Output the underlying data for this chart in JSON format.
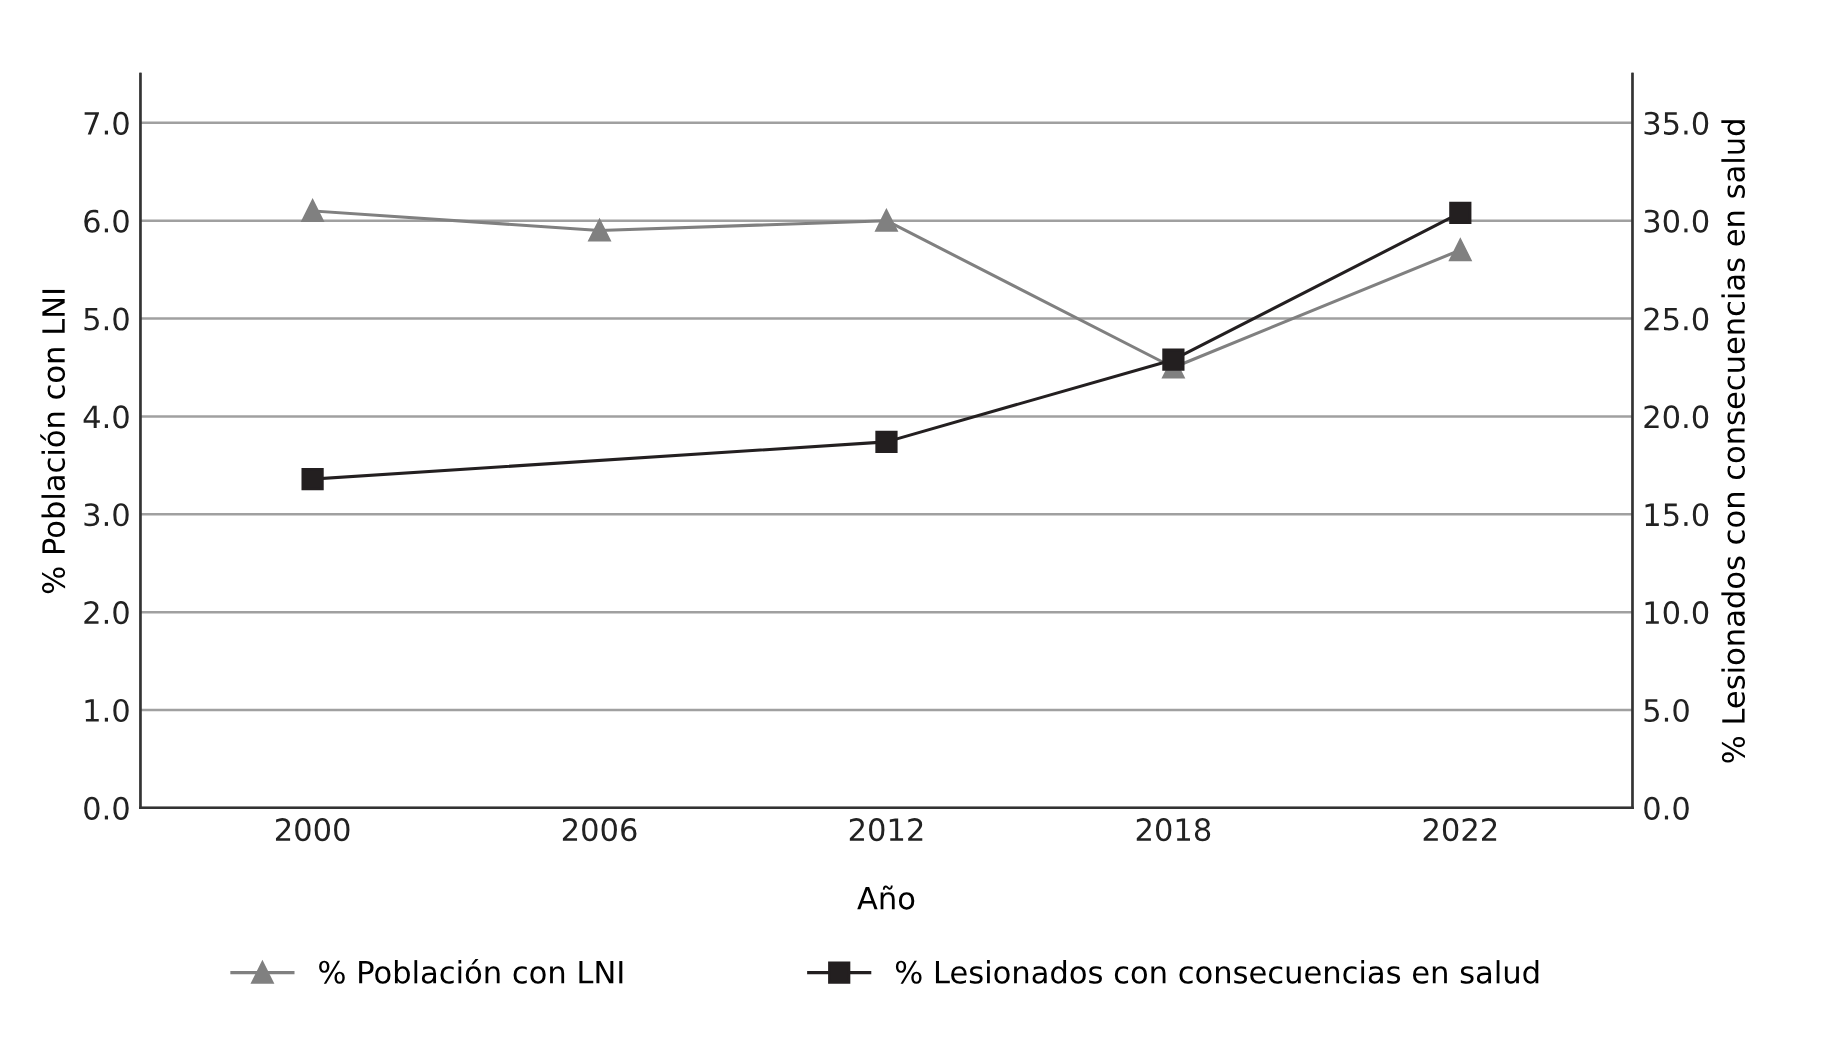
{
  "chart_data": {
    "type": "line",
    "xlabel": "Año",
    "ylabel": "% Población con LNI",
    "y2label": "% Lesionados con consecuencias en salud",
    "categories": [
      "2000",
      "2006",
      "2012",
      "2018",
      "2022"
    ],
    "series": [
      {
        "name": "% Población con LNI",
        "color": "#808080",
        "marker": "triangle",
        "values": [
          6.1,
          5.9,
          6.0,
          4.5,
          5.7
        ]
      },
      {
        "name": "% Lesionados con consecuencias en salud",
        "color": "#231f20",
        "marker": "square",
        "axis": "y2",
        "values": [
          16.8,
          null,
          18.7,
          22.9,
          30.4
        ]
      }
    ],
    "ylim": [
      0,
      7.5
    ],
    "yticks": [
      {
        "value": 0,
        "label": "0.0"
      },
      {
        "value": 1,
        "label": "1.0"
      },
      {
        "value": 2,
        "label": "2.0"
      },
      {
        "value": 3,
        "label": "3.0"
      },
      {
        "value": 4,
        "label": "4.0"
      },
      {
        "value": 5,
        "label": "5.0"
      },
      {
        "value": 6,
        "label": "6.0"
      },
      {
        "value": 7,
        "label": "7.0"
      }
    ],
    "y2lim": [
      0,
      37.5
    ],
    "y2ticks": [
      {
        "value": 0,
        "label": "0.0"
      },
      {
        "value": 5,
        "label": "5.0"
      },
      {
        "value": 10,
        "label": "10.0"
      },
      {
        "value": 15,
        "label": "15.0"
      },
      {
        "value": 20,
        "label": "20.0"
      },
      {
        "value": 25,
        "label": "25.0"
      },
      {
        "value": 30,
        "label": "30.0"
      },
      {
        "value": 35,
        "label": "35.0"
      }
    ],
    "grid": "y",
    "legend": "bottom"
  }
}
